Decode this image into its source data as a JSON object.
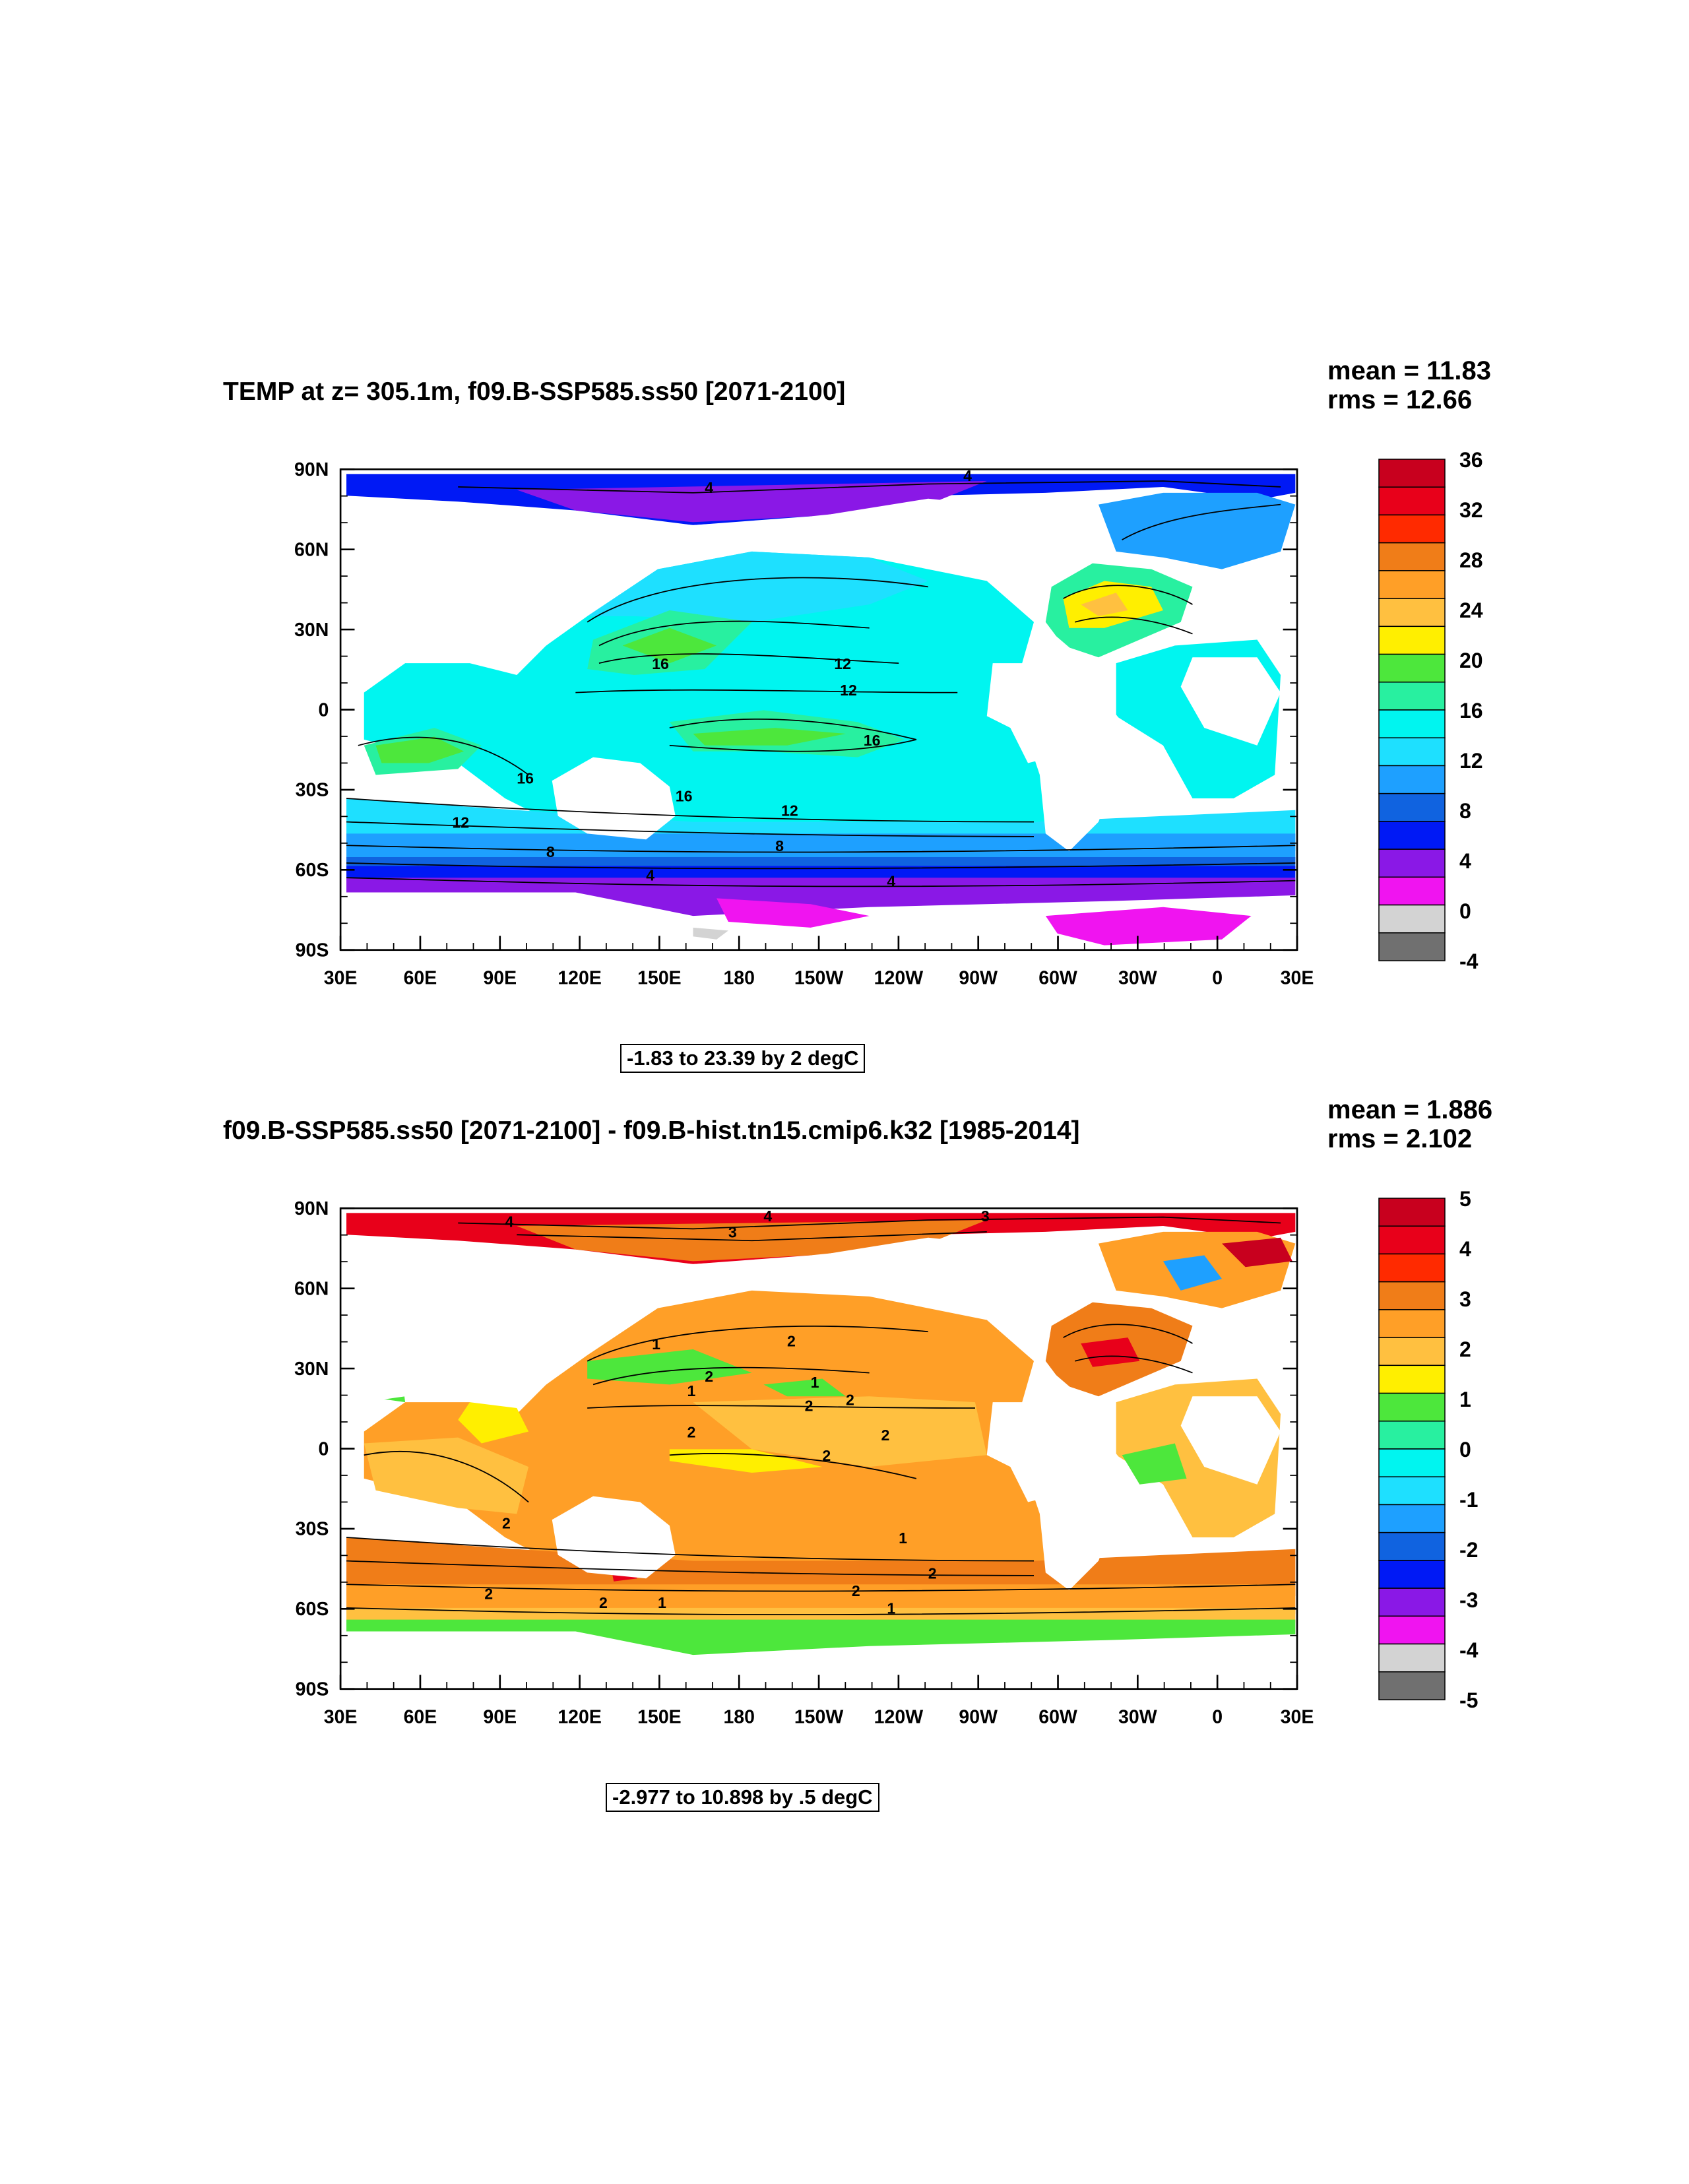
{
  "panels": [
    {
      "title": "TEMP at z= 305.1m, f09.B-SSP585.ss50 [2071-2100]",
      "mean": "mean = 11.83",
      "rms": "rms = 12.66",
      "range_label": "-1.83 to 23.39 by 2 degC",
      "y_ticks": [
        "90N",
        "60N",
        "30N",
        "0",
        "30S",
        "60S",
        "90S"
      ],
      "x_ticks": [
        "30E",
        "60E",
        "90E",
        "120E",
        "150E",
        "180",
        "150W",
        "120W",
        "90W",
        "60W",
        "30W",
        "0",
        "30E"
      ],
      "colorbar": {
        "labels": [
          "36",
          "32",
          "28",
          "24",
          "20",
          "16",
          "12",
          "8",
          "4",
          "0",
          "-4"
        ],
        "colors": [
          "#c8001e",
          "#e8001a",
          "#ff2a00",
          "#f07d18",
          "#ff9f27",
          "#ffc040",
          "#ffef00",
          "#4de73c",
          "#28f0a0",
          "#00f5f0",
          "#1ee0ff",
          "#1ea0ff",
          "#1063e0",
          "#0019f5",
          "#8a18e6",
          "#f014f0",
          "#d3d3d3",
          "#707070"
        ]
      },
      "contour_labels": [
        "4",
        "4",
        "16",
        "12",
        "12",
        "16",
        "16",
        "16",
        "12",
        "12",
        "8",
        "8",
        "4",
        "4"
      ]
    },
    {
      "title": "f09.B-SSP585.ss50 [2071-2100] - f09.B-hist.tn15.cmip6.k32 [1985-2014]",
      "mean": "mean = 1.886",
      "rms": "rms = 2.102",
      "range_label": "-2.977 to 10.898 by .5 degC",
      "y_ticks": [
        "90N",
        "60N",
        "30N",
        "0",
        "30S",
        "60S",
        "90S"
      ],
      "x_ticks": [
        "30E",
        "60E",
        "90E",
        "120E",
        "150E",
        "180",
        "150W",
        "120W",
        "90W",
        "60W",
        "30W",
        "0",
        "30E"
      ],
      "colorbar": {
        "labels": [
          "5",
          "4",
          "3",
          "2",
          "1",
          "0",
          "-1",
          "-2",
          "-3",
          "-4",
          "-5"
        ],
        "colors": [
          "#c8001e",
          "#e8001a",
          "#ff2a00",
          "#f07d18",
          "#ff9f27",
          "#ffc040",
          "#ffef00",
          "#4de73c",
          "#28f0a0",
          "#00f5f0",
          "#1ee0ff",
          "#1ea0ff",
          "#1063e0",
          "#0019f5",
          "#8a18e6",
          "#f014f0",
          "#d3d3d3",
          "#707070"
        ]
      },
      "contour_labels": [
        "4",
        "4",
        "3",
        "3",
        "2",
        "1",
        "2",
        "1",
        "2",
        "1",
        "2",
        "2",
        "2",
        "2",
        "2",
        "1",
        "2",
        "2",
        "2",
        "1",
        "1",
        "2"
      ]
    }
  ]
}
